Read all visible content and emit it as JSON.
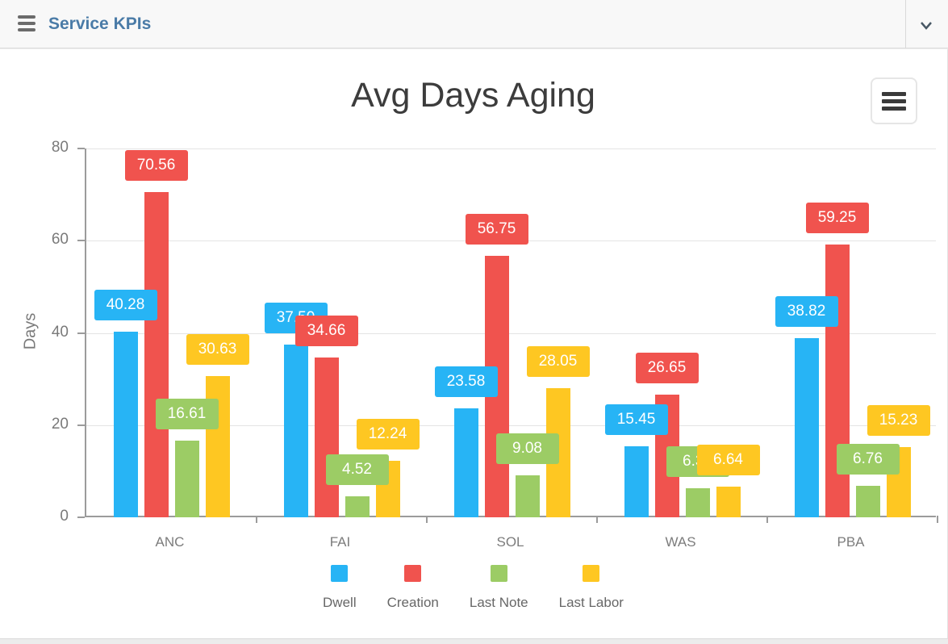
{
  "app_header": {
    "title": "Service KPIs",
    "menu_icon": "hamburger-icon",
    "collapse_icon": "chevron-down-icon"
  },
  "chart": {
    "title": "Avg Days Aging",
    "y_axis_title": "Days",
    "menu_button_icon": "hamburger-icon"
  },
  "colors": {
    "header_title": "#4a7ba7",
    "series_dwell": "#27b4f5",
    "series_creation": "#f0534e",
    "series_last_note": "#9ccc65",
    "series_last_labor": "#fec722"
  },
  "chart_data": {
    "type": "bar",
    "title": "Avg Days Aging",
    "xlabel": "",
    "ylabel": "Days",
    "ylim": [
      0,
      80
    ],
    "yticks": [
      0,
      20,
      40,
      60,
      80
    ],
    "grid": "horizontal",
    "legend_position": "bottom",
    "bar_value_labels": "colored box above each bar, white text",
    "categories": [
      "ANC",
      "FAI",
      "SOL",
      "WAS",
      "PBA"
    ],
    "series": [
      {
        "name": "Dwell",
        "color": "#27b4f5",
        "values": [
          40.28,
          37.5,
          23.58,
          15.45,
          38.82
        ]
      },
      {
        "name": "Creation",
        "color": "#f0534e",
        "values": [
          70.56,
          34.66,
          56.75,
          26.65,
          59.25
        ]
      },
      {
        "name": "Last Note",
        "color": "#9ccc65",
        "values": [
          16.61,
          4.52,
          9.08,
          6.35,
          6.76
        ]
      },
      {
        "name": "Last Labor",
        "color": "#fec722",
        "values": [
          30.63,
          12.24,
          28.05,
          6.64,
          15.23
        ]
      }
    ],
    "occluded_value_labels": [
      {
        "series": "Dwell",
        "category": "FAI",
        "visible_text": "37.",
        "value_estimated": true
      },
      {
        "series": "Last Note",
        "category": "WAS",
        "visible_text": "6.3",
        "value_estimated": true
      }
    ]
  }
}
